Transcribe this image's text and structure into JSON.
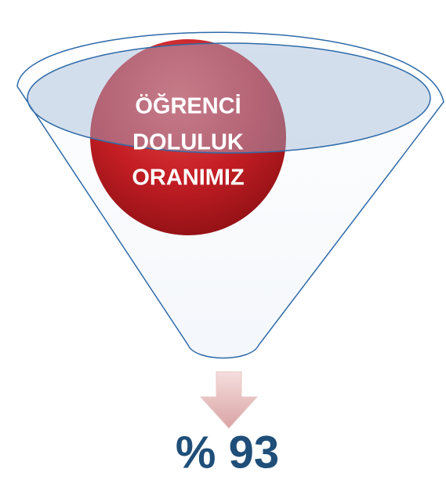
{
  "funnel": {
    "label_lines": [
      "ÖĞRENCİ",
      "DOLULUK",
      "ORANIMIZ"
    ]
  },
  "result": "% 93"
}
